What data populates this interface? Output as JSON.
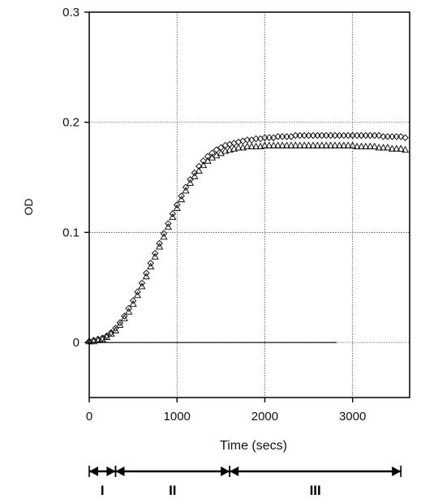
{
  "chart_data": {
    "type": "scatter",
    "title": "",
    "xlabel": "Time (secs)",
    "ylabel": "OD",
    "xlim": [
      0,
      3650
    ],
    "ylim": [
      -0.05,
      0.3
    ],
    "xticks": [
      0,
      1000,
      2000,
      3000
    ],
    "xtick_labels": [
      "0",
      "1000",
      "2000",
      "3000"
    ],
    "yticks": [
      0,
      0.1,
      0.2,
      0.3
    ],
    "ytick_labels": [
      "0",
      "0.1",
      "0.2",
      "0.3"
    ],
    "grid": true,
    "legend": "none",
    "series": [
      {
        "marker": "diamond",
        "x": [
          0,
          50,
          100,
          150,
          200,
          250,
          300,
          350,
          400,
          450,
          500,
          550,
          600,
          650,
          700,
          750,
          800,
          850,
          900,
          950,
          1000,
          1050,
          1100,
          1150,
          1200,
          1250,
          1300,
          1350,
          1400,
          1450,
          1500,
          1550,
          1600,
          1650,
          1700,
          1750,
          1800,
          1850,
          1900,
          1950,
          2000,
          2050,
          2100,
          2150,
          2200,
          2250,
          2300,
          2350,
          2400,
          2450,
          2500,
          2550,
          2600,
          2650,
          2700,
          2750,
          2800,
          2850,
          2900,
          2950,
          3000,
          3050,
          3100,
          3150,
          3200,
          3250,
          3300,
          3350,
          3400,
          3450,
          3500,
          3550,
          3600
        ],
        "y": [
          0.001,
          0.002,
          0.003,
          0.004,
          0.006,
          0.009,
          0.013,
          0.018,
          0.024,
          0.031,
          0.038,
          0.046,
          0.054,
          0.063,
          0.072,
          0.081,
          0.09,
          0.099,
          0.108,
          0.117,
          0.125,
          0.133,
          0.141,
          0.148,
          0.154,
          0.16,
          0.165,
          0.169,
          0.172,
          0.175,
          0.177,
          0.179,
          0.18,
          0.181,
          0.182,
          0.183,
          0.184,
          0.184,
          0.185,
          0.185,
          0.186,
          0.186,
          0.186,
          0.187,
          0.187,
          0.187,
          0.187,
          0.188,
          0.188,
          0.188,
          0.188,
          0.188,
          0.188,
          0.188,
          0.188,
          0.188,
          0.188,
          0.188,
          0.188,
          0.188,
          0.188,
          0.188,
          0.188,
          0.188,
          0.188,
          0.188,
          0.188,
          0.187,
          0.187,
          0.187,
          0.187,
          0.187,
          0.186
        ]
      },
      {
        "marker": "triangle",
        "x": [
          0,
          50,
          100,
          150,
          200,
          250,
          300,
          350,
          400,
          450,
          500,
          550,
          600,
          650,
          700,
          750,
          800,
          850,
          900,
          950,
          1000,
          1050,
          1100,
          1150,
          1200,
          1250,
          1300,
          1350,
          1400,
          1450,
          1500,
          1550,
          1600,
          1650,
          1700,
          1750,
          1800,
          1850,
          1900,
          1950,
          2000,
          2050,
          2100,
          2150,
          2200,
          2250,
          2300,
          2350,
          2400,
          2450,
          2500,
          2550,
          2600,
          2650,
          2700,
          2750,
          2800,
          2850,
          2900,
          2950,
          3000,
          3050,
          3100,
          3150,
          3200,
          3250,
          3300,
          3350,
          3400,
          3450,
          3500,
          3550,
          3600
        ],
        "y": [
          0.001,
          0.001,
          0.002,
          0.003,
          0.005,
          0.008,
          0.011,
          0.016,
          0.022,
          0.028,
          0.035,
          0.043,
          0.051,
          0.06,
          0.069,
          0.078,
          0.087,
          0.096,
          0.105,
          0.114,
          0.122,
          0.13,
          0.138,
          0.145,
          0.151,
          0.156,
          0.161,
          0.165,
          0.168,
          0.17,
          0.172,
          0.174,
          0.175,
          0.176,
          0.177,
          0.177,
          0.178,
          0.178,
          0.178,
          0.178,
          0.179,
          0.179,
          0.179,
          0.179,
          0.179,
          0.179,
          0.179,
          0.179,
          0.179,
          0.179,
          0.179,
          0.179,
          0.179,
          0.179,
          0.179,
          0.179,
          0.179,
          0.179,
          0.179,
          0.179,
          0.179,
          0.178,
          0.178,
          0.178,
          0.178,
          0.178,
          0.177,
          0.177,
          0.177,
          0.176,
          0.176,
          0.176,
          0.175
        ]
      }
    ]
  },
  "phases": [
    {
      "label": "I",
      "x_start": 0,
      "x_end": 300
    },
    {
      "label": "II",
      "x_start": 300,
      "x_end": 1600
    },
    {
      "label": "III",
      "x_start": 1600,
      "x_end": 3550
    }
  ]
}
